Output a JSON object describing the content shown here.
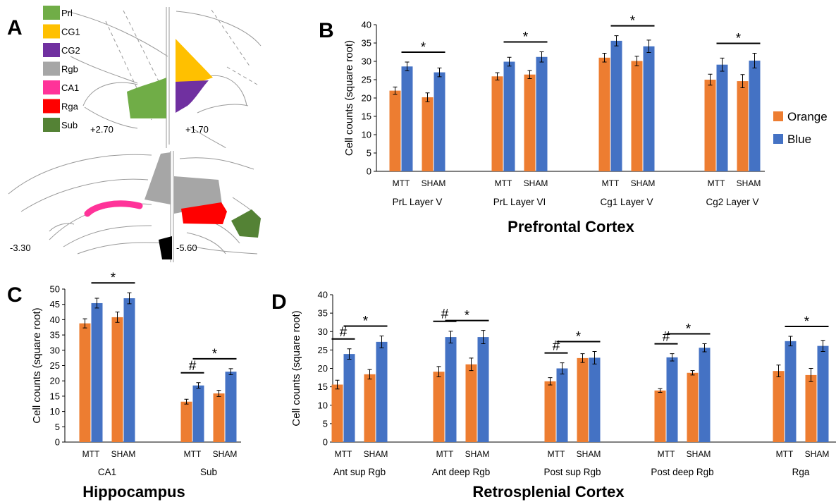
{
  "panels": {
    "a_label": "A",
    "b_label": "B",
    "c_label": "C",
    "d_label": "D"
  },
  "atlas": {
    "regions": [
      {
        "name": "Prl",
        "color": "#70ad47"
      },
      {
        "name": "CG1",
        "color": "#ffc000"
      },
      {
        "name": "CG2",
        "color": "#7030a0"
      },
      {
        "name": "Rgb",
        "color": "#a6a6a6"
      },
      {
        "name": "CA1",
        "color": "#ff3399"
      },
      {
        "name": "Rga",
        "color": "#ff0000"
      },
      {
        "name": "Sub",
        "color": "#548235"
      }
    ],
    "coords": [
      "+2.70",
      "+1.70",
      "-3.30",
      "-5.60"
    ]
  },
  "legend": [
    {
      "name": "Orange",
      "color": "#ed7d31"
    },
    {
      "name": "Blue",
      "color": "#4472c4"
    }
  ],
  "chart_data": [
    {
      "type": "bar",
      "panel": "B",
      "title": "Prefrontal Cortex",
      "ylabel": "Cell counts (square root)",
      "ylim": [
        0,
        40
      ],
      "yticks": [
        0,
        5,
        10,
        15,
        20,
        25,
        30,
        35,
        40
      ],
      "groups": [
        {
          "label": "PrL Layer V",
          "conditions": [
            "MTT",
            "SHAM"
          ],
          "orange": [
            22.0,
            20.2
          ],
          "blue": [
            28.6,
            27.0
          ],
          "orange_err": [
            1.0,
            1.2
          ],
          "blue_err": [
            1.2,
            1.2
          ],
          "sig": [
            {
              "text": "*",
              "from": "MTT-blue",
              "to": "SHAM-blue"
            }
          ]
        },
        {
          "label": "PrL Layer VI",
          "conditions": [
            "MTT",
            "SHAM"
          ],
          "orange": [
            25.9,
            26.4
          ],
          "blue": [
            29.9,
            31.2
          ],
          "orange_err": [
            1.0,
            1.1
          ],
          "blue_err": [
            1.2,
            1.4
          ],
          "sig": [
            {
              "text": "*",
              "from": "MTT-blue",
              "to": "SHAM-blue"
            }
          ]
        },
        {
          "label": "Cg1 Layer V",
          "conditions": [
            "MTT",
            "SHAM"
          ],
          "orange": [
            31.0,
            30.1
          ],
          "blue": [
            35.6,
            34.1
          ],
          "orange_err": [
            1.2,
            1.3
          ],
          "blue_err": [
            1.4,
            1.7
          ],
          "sig": [
            {
              "text": "*",
              "from": "MTT-blue",
              "to": "SHAM-blue"
            }
          ]
        },
        {
          "label": "Cg2 Layer V",
          "conditions": [
            "MTT",
            "SHAM"
          ],
          "orange": [
            25.0,
            24.6
          ],
          "blue": [
            29.1,
            30.2
          ],
          "orange_err": [
            1.5,
            1.8
          ],
          "blue_err": [
            1.8,
            2.0
          ],
          "sig": [
            {
              "text": "*",
              "from": "MTT-blue",
              "to": "SHAM-blue"
            }
          ]
        }
      ]
    },
    {
      "type": "bar",
      "panel": "C",
      "title": "Hippocampus",
      "ylabel": "Cell counts (square root)",
      "ylim": [
        0,
        50
      ],
      "yticks": [
        0,
        5,
        10,
        15,
        20,
        25,
        30,
        35,
        40,
        45,
        50
      ],
      "groups": [
        {
          "label": "CA1",
          "conditions": [
            "MTT",
            "SHAM"
          ],
          "orange": [
            38.8,
            40.8
          ],
          "blue": [
            45.4,
            47.0
          ],
          "orange_err": [
            1.5,
            1.7
          ],
          "blue_err": [
            1.6,
            1.8
          ],
          "sig": [
            {
              "text": "*",
              "from": "MTT-blue",
              "to": "SHAM-blue"
            }
          ]
        },
        {
          "label": "Sub",
          "conditions": [
            "MTT",
            "SHAM"
          ],
          "orange": [
            13.2,
            15.9
          ],
          "blue": [
            18.5,
            23.0
          ],
          "orange_err": [
            0.8,
            1.0
          ],
          "blue_err": [
            0.9,
            1.0
          ],
          "sig": [
            {
              "text": "#",
              "from": "MTT-orange",
              "to": "MTT-blue"
            },
            {
              "text": "*",
              "from": "MTT-blue",
              "to": "SHAM-blue"
            }
          ]
        }
      ]
    },
    {
      "type": "bar",
      "panel": "D",
      "title": "Retrosplenial Cortex",
      "ylabel": "Cell counts (square root)",
      "ylim": [
        0,
        40
      ],
      "yticks": [
        0,
        5,
        10,
        15,
        20,
        25,
        30,
        35,
        40
      ],
      "groups": [
        {
          "label": "Ant sup Rgb",
          "conditions": [
            "MTT",
            "SHAM"
          ],
          "orange": [
            15.6,
            18.4
          ],
          "blue": [
            23.9,
            27.2
          ],
          "orange_err": [
            1.2,
            1.3
          ],
          "blue_err": [
            1.4,
            1.6
          ],
          "sig": [
            {
              "text": "#",
              "from": "MTT-orange",
              "to": "MTT-blue"
            },
            {
              "text": "*",
              "from": "MTT-blue",
              "to": "SHAM-blue"
            }
          ]
        },
        {
          "label": "Ant deep Rgb",
          "conditions": [
            "MTT",
            "SHAM"
          ],
          "orange": [
            19.1,
            21.1
          ],
          "blue": [
            28.5,
            28.5
          ],
          "orange_err": [
            1.4,
            1.7
          ],
          "blue_err": [
            1.6,
            1.8
          ],
          "sig": [
            {
              "text": "#",
              "from": "MTT-orange",
              "to": "MTT-blue"
            },
            {
              "text": "*",
              "from": "MTT-blue",
              "to": "SHAM-blue"
            }
          ]
        },
        {
          "label": "Post sup Rgb",
          "conditions": [
            "MTT",
            "SHAM"
          ],
          "orange": [
            16.5,
            22.8
          ],
          "blue": [
            20.0,
            22.9
          ],
          "orange_err": [
            1.0,
            1.2
          ],
          "blue_err": [
            1.5,
            1.7
          ],
          "sig": [
            {
              "text": "#",
              "from": "MTT-orange",
              "to": "MTT-blue"
            },
            {
              "text": "*",
              "from": "MTT-blue",
              "to": "SHAM-blue"
            }
          ]
        },
        {
          "label": "Post deep Rgb",
          "conditions": [
            "MTT",
            "SHAM"
          ],
          "orange": [
            14.0,
            18.8
          ],
          "blue": [
            23.0,
            25.6
          ],
          "orange_err": [
            0.5,
            0.6
          ],
          "blue_err": [
            1.0,
            1.1
          ],
          "sig": [
            {
              "text": "#",
              "from": "MTT-orange",
              "to": "MTT-blue"
            },
            {
              "text": "*",
              "from": "MTT-blue",
              "to": "SHAM-blue"
            }
          ]
        },
        {
          "label": "Rga",
          "conditions": [
            "MTT",
            "SHAM"
          ],
          "orange": [
            19.3,
            18.2
          ],
          "blue": [
            27.4,
            26.1
          ],
          "orange_err": [
            1.6,
            1.8
          ],
          "blue_err": [
            1.3,
            1.5
          ],
          "sig": [
            {
              "text": "*",
              "from": "MTT-blue",
              "to": "SHAM-blue"
            }
          ]
        }
      ]
    }
  ]
}
